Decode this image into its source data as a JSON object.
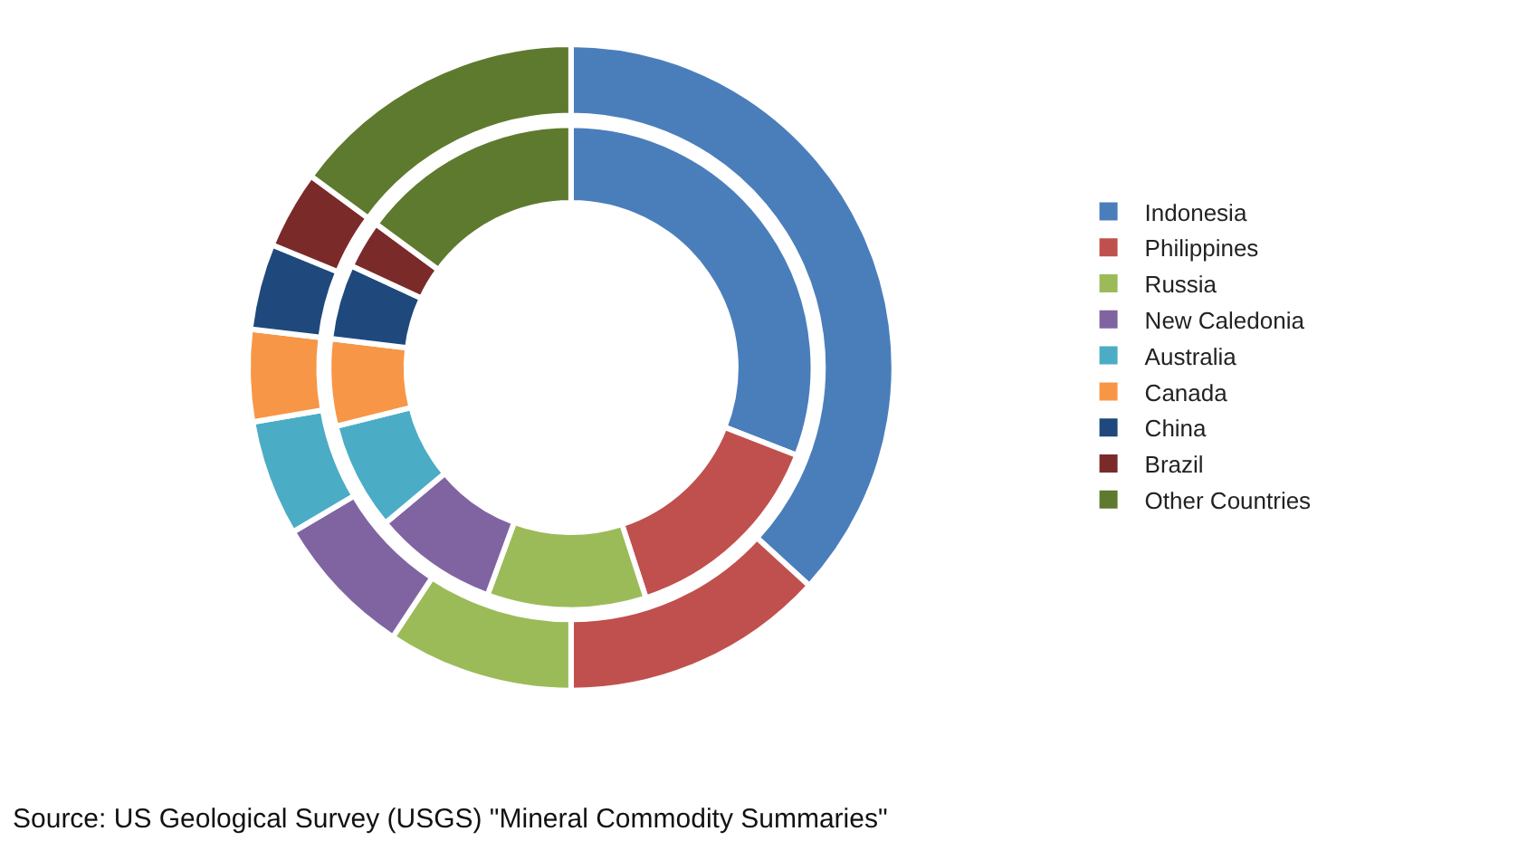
{
  "chart_data": {
    "type": "donut",
    "categories": [
      "Indonesia",
      "Philippines",
      "Russia",
      "New Caledonia",
      "Australia",
      "Canada",
      "China",
      "Brazil",
      "Other Countries"
    ],
    "colors": [
      "#4a7ebb",
      "#c0504d",
      "#9bbb59",
      "#8064a2",
      "#4bacc6",
      "#f79646",
      "#1f497d",
      "#7b2a2a",
      "#5e7a2e"
    ],
    "series": [
      {
        "values": [
          30.9,
          14.1,
          10.6,
          8.3,
          7.2,
          5.8,
          5.0,
          3.2,
          14.9
        ]
      },
      {
        "values": [
          36.8,
          13.2,
          9.3,
          7.2,
          5.8,
          4.6,
          4.3,
          3.9,
          14.9
        ]
      }
    ],
    "legend": "right",
    "annotations": [
      "Source: US Geological Survey (USGS) \"Mineral Commodity Summaries\""
    ]
  }
}
